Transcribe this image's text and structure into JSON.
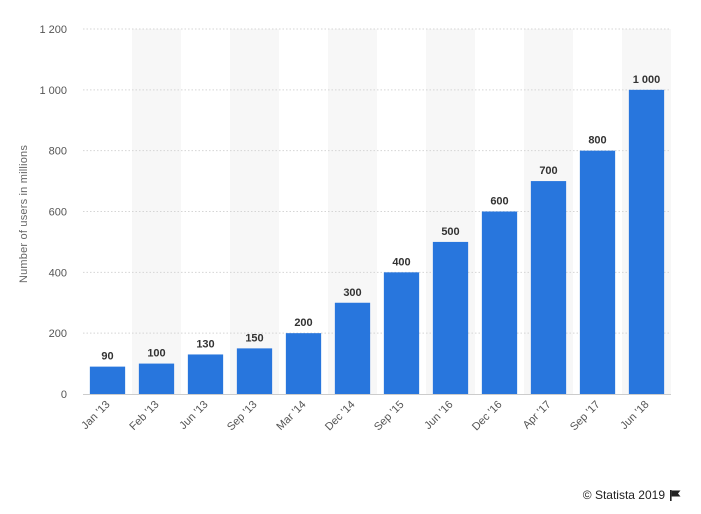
{
  "chart_data": {
    "type": "bar",
    "categories": [
      "Jan '13",
      "Feb '13",
      "Jun '13",
      "Sep '13",
      "Mar '14",
      "Dec '14",
      "Sep '15",
      "Jun '16",
      "Dec '16",
      "Apr '17",
      "Sep '17",
      "Jun '18"
    ],
    "values": [
      90,
      100,
      130,
      150,
      200,
      300,
      400,
      500,
      600,
      700,
      800,
      1000
    ],
    "value_labels": [
      "90",
      "100",
      "130",
      "150",
      "200",
      "300",
      "400",
      "500",
      "600",
      "700",
      "800",
      "1 000"
    ],
    "ylabel": "Number of users in millions",
    "xlabel": "",
    "ylim": [
      0,
      1200
    ],
    "yticks": [
      0,
      200,
      400,
      600,
      800,
      1000,
      1200
    ],
    "ytick_labels": [
      "0",
      "200",
      "400",
      "600",
      "800",
      "1 000",
      "1 200"
    ],
    "grid": true,
    "bar_color": "#2876dd",
    "band_color": "#f7f7f7"
  },
  "credit": {
    "text": "© Statista 2019",
    "icon": "flag-icon"
  }
}
